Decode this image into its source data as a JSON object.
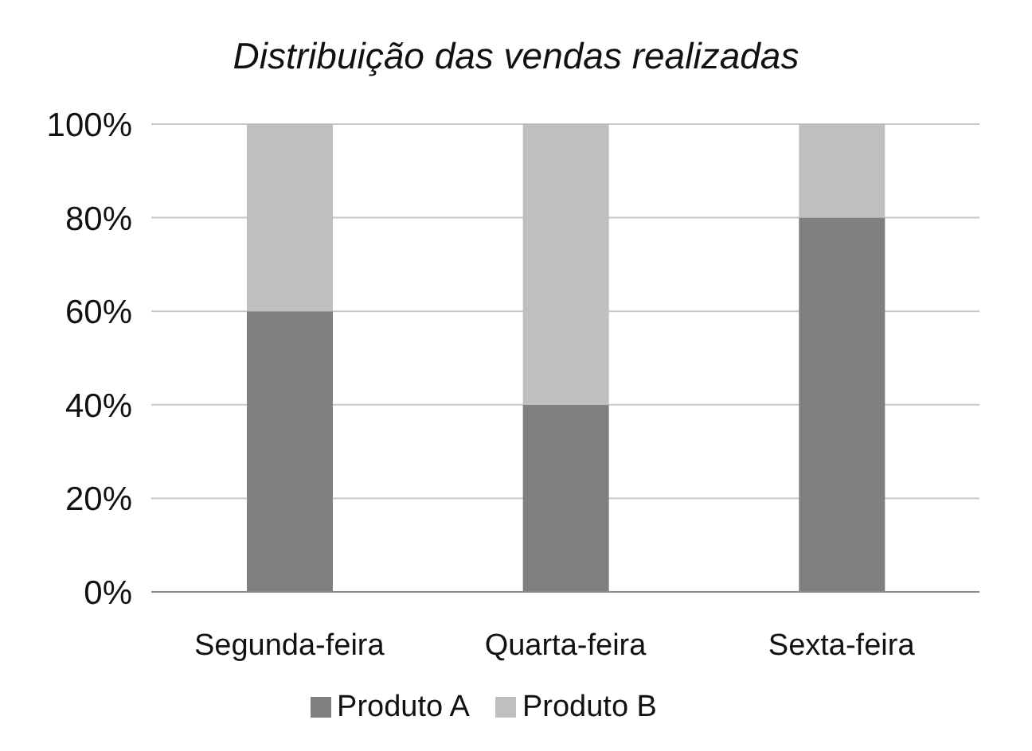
{
  "chart_data": {
    "type": "bar",
    "title": "Distribuição das vendas realizadas",
    "categories": [
      "Segunda-feira",
      "Quarta-feira",
      "Sexta-feira"
    ],
    "stacked": true,
    "series": [
      {
        "name": "Produto A",
        "color": "#808080",
        "values": [
          60,
          40,
          80
        ]
      },
      {
        "name": "Produto B",
        "color": "#bfbfbf",
        "values": [
          40,
          60,
          20
        ]
      }
    ],
    "ylim": [
      0,
      100
    ],
    "yticks": [
      {
        "value": 0,
        "label": "0%"
      },
      {
        "value": 20,
        "label": "20%"
      },
      {
        "value": 40,
        "label": "40%"
      },
      {
        "value": 60,
        "label": "60%"
      },
      {
        "value": 80,
        "label": "80%"
      },
      {
        "value": 100,
        "label": "100%"
      }
    ],
    "grid": "y",
    "legend": "bottom"
  }
}
